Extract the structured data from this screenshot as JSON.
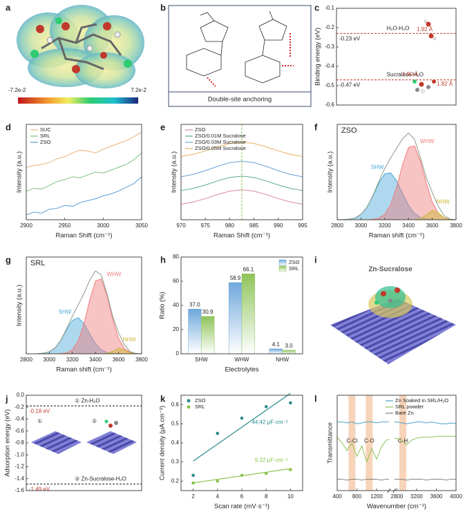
{
  "chart_data": [
    {
      "label": "a",
      "type": "image",
      "colorbar_labels": [
        "-7.2e-2",
        "7.2e-2"
      ]
    },
    {
      "label": "b",
      "type": "image",
      "caption": "Double-site anchoring"
    },
    {
      "label": "c",
      "type": "level",
      "ylabel": "Binding energy (eV)",
      "ylim": [
        -0.6,
        -0.1
      ],
      "yticks": [
        -0.1,
        -0.2,
        -0.3,
        -0.4,
        -0.5,
        -0.6
      ],
      "categories": [
        "H₂O-H₂O",
        "Sucralose-H₂O"
      ],
      "values": [
        -0.23,
        -0.47
      ],
      "value_labels": [
        "-0.23 eV",
        "-0.47 eV"
      ],
      "line_color": "#c0392b",
      "value_label_color": "#222222",
      "annotations": [
        "1.92 Å",
        "1.90 Å",
        "1.82 Å"
      ],
      "annotation_color": "#c0392b"
    },
    {
      "label": "d",
      "type": "line",
      "xlabel": "Raman Shift (cm⁻¹)",
      "ylabel": "Intensity (a.u.)",
      "xlim": [
        2900,
        3050
      ],
      "xticks": [
        2900,
        2950,
        3000,
        3050
      ],
      "ylim": [
        0,
        1
      ],
      "legend": "upper left",
      "x": [
        2900,
        2910,
        2920,
        2930,
        2940,
        2950,
        2960,
        2970,
        2980,
        2990,
        3000,
        3010,
        3020,
        3030,
        3040,
        3050
      ],
      "series": [
        {
          "name": "SUC",
          "color": "#e8b07a",
          "values": [
            0.55,
            0.57,
            0.58,
            0.6,
            0.64,
            0.66,
            0.7,
            0.73,
            0.72,
            0.7,
            0.74,
            0.77,
            0.8,
            0.83,
            0.87,
            0.92
          ]
        },
        {
          "name": "SRL",
          "color": "#7fbf7f",
          "values": [
            0.3,
            0.33,
            0.32,
            0.36,
            0.4,
            0.42,
            0.45,
            0.44,
            0.47,
            0.5,
            0.49,
            0.52,
            0.55,
            0.58,
            0.63,
            0.7
          ]
        },
        {
          "name": "ZSO",
          "color": "#5b9bd5",
          "values": [
            0.05,
            0.08,
            0.07,
            0.11,
            0.12,
            0.15,
            0.14,
            0.18,
            0.2,
            0.22,
            0.25,
            0.27,
            0.3,
            0.34,
            0.38,
            0.45
          ]
        }
      ]
    },
    {
      "label": "e",
      "type": "line",
      "xlabel": "Raman Shift (cm⁻¹)",
      "ylabel": "Intensity (a.u.)",
      "xlim": [
        970,
        995
      ],
      "xticks": [
        970,
        975,
        980,
        985,
        990,
        995
      ],
      "ylim": [
        0,
        0.7
      ],
      "legend": "upper left",
      "vline": 982.5,
      "vline_color": "#8bc34a",
      "x": [
        970,
        972.5,
        975,
        977.5,
        980,
        982.5,
        985,
        987.5,
        990,
        992.5,
        995
      ],
      "series": [
        {
          "name": "ZSO",
          "color": "#d98a9a",
          "values": [
            0.114,
            0.13,
            0.155,
            0.185,
            0.21,
            0.22,
            0.21,
            0.185,
            0.155,
            0.13,
            0.114
          ]
        },
        {
          "name": "ZSO/0.01M Sucralose",
          "color": "#5aaa8a",
          "values": [
            0.214,
            0.23,
            0.255,
            0.285,
            0.31,
            0.32,
            0.31,
            0.285,
            0.255,
            0.23,
            0.214
          ]
        },
        {
          "name": "ZSO/0.03M Sucralose",
          "color": "#6a9fd4",
          "values": [
            0.315,
            0.333,
            0.36,
            0.392,
            0.419,
            0.43,
            0.419,
            0.392,
            0.36,
            0.333,
            0.315
          ]
        },
        {
          "name": "ZSO/0.05M Sucralose",
          "color": "#e8b060",
          "values": [
            0.464,
            0.48,
            0.505,
            0.535,
            0.56,
            0.57,
            0.56,
            0.535,
            0.505,
            0.48,
            0.464
          ]
        }
      ]
    },
    {
      "label": "f",
      "type": "line",
      "inset_title": "ZSO",
      "xlabel": "Raman shift (cm⁻¹)",
      "ylabel": "Intensity (a.u.)",
      "xlim": [
        2800,
        3800
      ],
      "xticks": [
        2800,
        3000,
        3200,
        3400,
        3600,
        3800
      ],
      "ylim": [
        0,
        1.2
      ],
      "peak_labels": true,
      "x": [
        2800,
        2850,
        2900,
        2950,
        3000,
        3050,
        3100,
        3150,
        3200,
        3250,
        3300,
        3350,
        3400,
        3450,
        3500,
        3550,
        3600,
        3650,
        3700,
        3750,
        3800
      ],
      "series": [
        {
          "name": "SHW",
          "color": "#4aa8d8",
          "fill": true,
          "values": [
            0,
            0.002,
            0.007,
            0.023,
            0.068,
            0.157,
            0.298,
            0.461,
            0.578,
            0.59,
            0.49,
            0.331,
            0.182,
            0.081,
            0.03,
            0.009,
            0.002,
            0,
            0,
            0,
            0
          ]
        },
        {
          "name": "WHW",
          "color": "#f07b7b",
          "fill": true,
          "values": [
            0,
            0,
            0,
            0,
            0,
            0.001,
            0.004,
            0.019,
            0.067,
            0.188,
            0.408,
            0.69,
            0.908,
            0.931,
            0.744,
            0.462,
            0.224,
            0.085,
            0.025,
            0.006,
            0.001
          ]
        },
        {
          "name": "NHW",
          "color": "#c8b830",
          "fill": true,
          "values": [
            0,
            0,
            0,
            0,
            0,
            0,
            0,
            0,
            0,
            0,
            0,
            0,
            0,
            0.001,
            0.011,
            0.058,
            0.118,
            0.087,
            0.024,
            0.002,
            0
          ]
        },
        {
          "color": "#8a9a8a",
          "values": [
            0,
            0.002,
            0.007,
            0.023,
            0.068,
            0.158,
            0.302,
            0.48,
            0.645,
            0.778,
            0.898,
            1.021,
            1.09,
            1.013,
            0.785,
            0.529,
            0.344,
            0.172,
            0.049,
            0.008,
            0.001
          ]
        }
      ]
    },
    {
      "label": "g",
      "type": "line",
      "inset_title": "SRL",
      "xlabel": "Raman shift (cm⁻¹)",
      "ylabel": "Intensity (a.u.)",
      "xlim": [
        2800,
        3800
      ],
      "xticks": [
        2800,
        3000,
        3200,
        3400,
        3600,
        3800
      ],
      "ylim": [
        0,
        1.2
      ],
      "peak_labels": true,
      "x": [
        2800,
        2850,
        2900,
        2950,
        3000,
        3050,
        3100,
        3150,
        3200,
        3250,
        3300,
        3350,
        3400,
        3450,
        3500,
        3550,
        3600,
        3650,
        3700,
        3750,
        3800
      ],
      "series": [
        {
          "name": "SHW",
          "color": "#4aa8d8",
          "fill": true,
          "values": [
            0,
            0,
            0.001,
            0.007,
            0.025,
            0.074,
            0.169,
            0.3,
            0.415,
            0.448,
            0.376,
            0.246,
            0.125,
            0.05,
            0.015,
            0.004,
            0.001,
            0,
            0,
            0,
            0
          ]
        },
        {
          "name": "WHW",
          "color": "#f07b7b",
          "fill": true,
          "values": [
            0,
            0,
            0,
            0,
            0,
            0,
            0.002,
            0.012,
            0.051,
            0.158,
            0.372,
            0.666,
            0.903,
            0.929,
            0.724,
            0.428,
            0.192,
            0.065,
            0.017,
            0.003,
            0
          ]
        },
        {
          "name": "NHW",
          "color": "#c8b830",
          "fill": true,
          "values": [
            0,
            0,
            0,
            0,
            0,
            0,
            0,
            0,
            0,
            0,
            0,
            0,
            0,
            0,
            0.004,
            0.029,
            0.068,
            0.047,
            0.009,
            0.001,
            0
          ]
        },
        {
          "color": "#8a9a8a",
          "values": [
            0,
            0,
            0.001,
            0.007,
            0.025,
            0.074,
            0.171,
            0.312,
            0.466,
            0.606,
            0.748,
            0.912,
            1.028,
            0.979,
            0.743,
            0.461,
            0.261,
            0.112,
            0.026,
            0.004,
            0
          ]
        }
      ]
    },
    {
      "label": "h",
      "type": "bar",
      "xlabel": "Electrolytes",
      "ylabel": "Ratio (%)",
      "ylim": [
        0,
        80
      ],
      "yticks": [
        0,
        20,
        40,
        60,
        80
      ],
      "legend": "upper right",
      "categories": [
        "SHW",
        "WHW",
        "NHW"
      ],
      "series": [
        {
          "name": "ZSO",
          "color": "#6fa8dc",
          "values": [
            37,
            58.9,
            4.1
          ],
          "value_labels": [
            "37.0",
            "58.9",
            "4.1"
          ]
        },
        {
          "name": "SRL",
          "color": "#8fc45a",
          "values": [
            30.9,
            66.1,
            3
          ],
          "value_labels": [
            "30.9",
            "66.1",
            "3.0"
          ]
        }
      ]
    },
    {
      "label": "i",
      "type": "image",
      "title": "Zn-Sucralose"
    },
    {
      "label": "j",
      "type": "level",
      "ylabel": "Adsorption energy (eV)",
      "ylim": [
        -1.6,
        0
      ],
      "yticks": [
        {
          "value": 0,
          "label": "0.0"
        },
        -0.2,
        -0.4,
        -0.6,
        -0.8,
        {
          "value": -1,
          "label": "-1.0"
        },
        -1.2,
        -1.4,
        -1.6
      ],
      "categories": [
        "① Zn-H₂O",
        "② Zn-Sucralose-H₂O"
      ],
      "values": [
        -0.18,
        -1.49
      ],
      "value_labels": [
        "-0.18 eV",
        "-1.49 eV"
      ],
      "line_color": "#222222",
      "value_label_color": "#c0392b",
      "inset_labels": [
        "①",
        "②"
      ]
    },
    {
      "label": "k",
      "type": "scatter",
      "xlabel": "Scan rate (mV·s⁻¹)",
      "ylabel": "Current density (μA cm⁻²)",
      "xlim": [
        1,
        11
      ],
      "xticks": [
        2,
        4,
        6,
        8,
        10
      ],
      "ylim": [
        0.15,
        0.65
      ],
      "yticks": [
        0.2,
        0.3,
        0.4,
        0.5,
        0.6
      ],
      "legend": "upper left",
      "x": [
        2,
        4,
        6,
        8,
        10
      ],
      "series": [
        {
          "name": "ZSO",
          "color": "#2a8a8a",
          "values": [
            0.23,
            0.45,
            0.53,
            0.59,
            0.61
          ],
          "fit_x": [
            2,
            10
          ],
          "fit_values": [
            0.305,
            0.66
          ],
          "slope_label": "44.42 μF·cm⁻²"
        },
        {
          "name": "SRL",
          "color": "#8bc34a",
          "values": [
            0.19,
            0.2,
            0.23,
            0.24,
            0.26
          ],
          "fit_x": [
            2,
            10
          ],
          "fit_values": [
            0.19,
            0.265
          ],
          "slope_label": "9.32 μF·cm⁻²"
        }
      ]
    },
    {
      "label": "l",
      "type": "line",
      "xlabel": "Wavenumber (cm⁻¹)",
      "ylabel": "Transmittance",
      "xlim": [
        400,
        4000
      ],
      "xbreak": [
        1450,
        2750
      ],
      "xticks": [
        400,
        800,
        1200,
        2800,
        3200,
        3600,
        4000
      ],
      "ylim": [
        0,
        1
      ],
      "legend": "upper right",
      "band_color": "#f5c9a8",
      "bands": [
        {
          "value": 700,
          "label": "C-Cl"
        },
        {
          "value": 1050,
          "label": "C-O"
        },
        {
          "value": 2920,
          "label": "C-H"
        }
      ],
      "x": [
        400,
        500,
        600,
        700,
        800,
        900,
        1000,
        1100,
        1200,
        1300,
        1400,
        2800,
        2900,
        3000,
        3100,
        3200,
        3300,
        3400,
        3500,
        3600,
        3700,
        3800,
        3900,
        4000
      ],
      "series": [
        {
          "name": "Zn Soaked in SRL/H₂O",
          "color": "#4aa0c8",
          "values": [
            0.72,
            0.72,
            0.71,
            0.72,
            0.7,
            0.71,
            0.72,
            0.72,
            0.71,
            0.72,
            0.72,
            0.72,
            0.71,
            0.7,
            0.71,
            0.72,
            0.72,
            0.71,
            0.72,
            0.71,
            0.7,
            0.7,
            0.71,
            0.7
          ]
        },
        {
          "name": "SRL powder",
          "color": "#8fc45a",
          "values": [
            0.56,
            0.5,
            0.42,
            0.5,
            0.36,
            0.47,
            0.3,
            0.44,
            0.33,
            0.46,
            0.53,
            0.55,
            0.52,
            0.48,
            0.53,
            0.55,
            0.56,
            0.56,
            0.56,
            0.57,
            0.57,
            0.57,
            0.57,
            0.57
          ]
        },
        {
          "name": "Bare Zn",
          "color": "#808080",
          "values": [
            0.12,
            0.12,
            0.11,
            0.12,
            0.12,
            0.11,
            0.12,
            0.12,
            0.12,
            0.11,
            0.12,
            0.12,
            0.12,
            0.11,
            0.12,
            0.12,
            0.12,
            0.11,
            0.12,
            0.12,
            0.12,
            0.11,
            0.12,
            0.12
          ]
        }
      ]
    }
  ]
}
